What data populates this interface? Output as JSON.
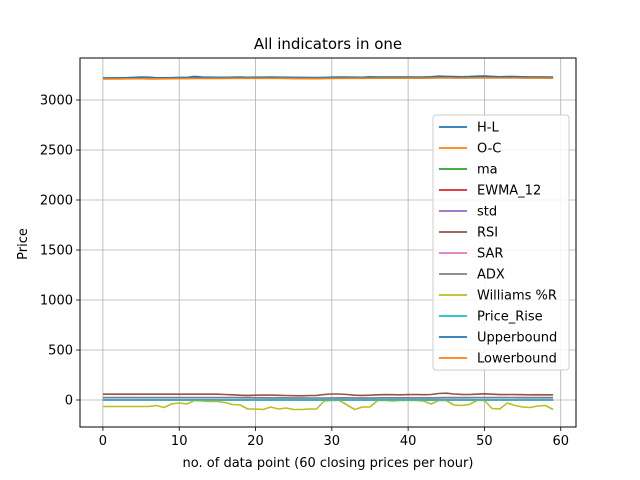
{
  "chart_data": {
    "type": "line",
    "title": "All indicators in one",
    "xlabel": "no. of data point (60 closing prices per hour)",
    "ylabel": "Price",
    "xlim": [
      -3,
      62
    ],
    "ylim": [
      -270,
      3420
    ],
    "xticks": [
      0,
      10,
      20,
      30,
      40,
      50,
      60
    ],
    "yticks": [
      0,
      500,
      1000,
      1500,
      2000,
      2500,
      3000
    ],
    "grid": true,
    "legend_position": "center-right",
    "x": [
      0,
      1,
      2,
      3,
      4,
      5,
      6,
      7,
      8,
      9,
      10,
      11,
      12,
      13,
      14,
      15,
      16,
      17,
      18,
      19,
      20,
      21,
      22,
      23,
      24,
      25,
      26,
      27,
      28,
      29,
      30,
      31,
      32,
      33,
      34,
      35,
      36,
      37,
      38,
      39,
      40,
      41,
      42,
      43,
      44,
      45,
      46,
      47,
      48,
      49,
      50,
      51,
      52,
      53,
      54,
      55,
      56,
      57,
      58,
      59
    ],
    "series": [
      {
        "name": "H-L",
        "color": "#1f77b4",
        "values": [
          3218,
          3219,
          3220,
          3222,
          3226,
          3230,
          3228,
          3222,
          3220,
          3222,
          3225,
          3224,
          3236,
          3230,
          3228,
          3227,
          3226,
          3228,
          3229,
          3227,
          3228,
          3228,
          3229,
          3228,
          3227,
          3226,
          3224,
          3223,
          3222,
          3224,
          3228,
          3230,
          3229,
          3228,
          3227,
          3232,
          3230,
          3229,
          3230,
          3230,
          3229,
          3228,
          3229,
          3232,
          3238,
          3236,
          3234,
          3232,
          3234,
          3238,
          3240,
          3236,
          3232,
          3234,
          3234,
          3232,
          3230,
          3230,
          3229,
          3228
        ]
      },
      {
        "name": "O-C",
        "color": "#ff7f0e",
        "values": [
          3212,
          3213,
          3214,
          3215,
          3216,
          3214,
          3210,
          3212,
          3214,
          3216,
          3218,
          3217,
          3220,
          3222,
          3220,
          3218,
          3219,
          3221,
          3220,
          3219,
          3220,
          3221,
          3220,
          3219,
          3218,
          3216,
          3214,
          3213,
          3214,
          3216,
          3220,
          3222,
          3220,
          3218,
          3219,
          3222,
          3221,
          3220,
          3221,
          3222,
          3221,
          3220,
          3220,
          3222,
          3226,
          3225,
          3222,
          3220,
          3222,
          3226,
          3228,
          3226,
          3224,
          3225,
          3224,
          3222,
          3221,
          3220,
          3219,
          3218
        ]
      },
      {
        "name": "ma",
        "color": "#2ca02c",
        "values": [
          0,
          0,
          0,
          0,
          0,
          0,
          0,
          0,
          0,
          0,
          0,
          0,
          0,
          0,
          0,
          0,
          0,
          0,
          0,
          0,
          0,
          0,
          0,
          0,
          0,
          0,
          0,
          0,
          0,
          0,
          0,
          0,
          0,
          0,
          0,
          0,
          0,
          0,
          0,
          0,
          0,
          0,
          0,
          0,
          0,
          0,
          0,
          0,
          0,
          0,
          0,
          0,
          0,
          0,
          0,
          0,
          0,
          0,
          0,
          0
        ]
      },
      {
        "name": "EWMA_12",
        "color": "#d62728",
        "values": [
          0,
          0,
          0,
          0,
          0,
          0,
          0,
          0,
          0,
          0,
          0,
          0,
          0,
          0,
          0,
          0,
          0,
          0,
          0,
          0,
          0,
          0,
          0,
          0,
          0,
          0,
          0,
          0,
          0,
          0,
          0,
          0,
          0,
          0,
          0,
          0,
          0,
          0,
          0,
          0,
          0,
          0,
          0,
          0,
          0,
          0,
          0,
          0,
          0,
          0,
          0,
          0,
          0,
          0,
          0,
          0,
          0,
          0,
          0,
          0
        ]
      },
      {
        "name": "std",
        "color": "#9467bd",
        "values": [
          5,
          5,
          5,
          5,
          5,
          5,
          5,
          5,
          5,
          5,
          5,
          5,
          5,
          5,
          5,
          5,
          5,
          5,
          5,
          5,
          5,
          5,
          5,
          5,
          5,
          5,
          5,
          5,
          5,
          5,
          5,
          5,
          5,
          5,
          5,
          5,
          5,
          5,
          5,
          5,
          5,
          5,
          5,
          5,
          5,
          5,
          5,
          5,
          5,
          5,
          5,
          5,
          5,
          5,
          5,
          5,
          5,
          5,
          5,
          5
        ]
      },
      {
        "name": "RSI",
        "color": "#8c564b",
        "values": [
          58,
          58,
          58,
          58,
          58,
          58,
          58,
          58,
          58,
          58,
          58,
          58,
          58,
          58,
          58,
          58,
          55,
          52,
          48,
          46,
          48,
          50,
          49,
          47,
          45,
          43,
          42,
          44,
          46,
          55,
          60,
          60,
          55,
          48,
          46,
          48,
          52,
          54,
          53,
          52,
          54,
          55,
          53,
          55,
          65,
          68,
          60,
          56,
          55,
          58,
          62,
          58,
          54,
          55,
          54,
          53,
          52,
          53,
          52,
          52
        ]
      },
      {
        "name": "SAR",
        "color": "#e377c2",
        "values": [
          0,
          0,
          0,
          0,
          0,
          0,
          0,
          0,
          0,
          0,
          0,
          0,
          0,
          0,
          0,
          0,
          0,
          0,
          0,
          0,
          0,
          0,
          0,
          0,
          0,
          0,
          0,
          0,
          0,
          0,
          0,
          0,
          0,
          0,
          0,
          0,
          0,
          0,
          0,
          0,
          0,
          0,
          0,
          0,
          0,
          0,
          0,
          0,
          0,
          0,
          0,
          0,
          0,
          0,
          0,
          0,
          0,
          0,
          0,
          0
        ]
      },
      {
        "name": "ADX",
        "color": "#7f7f7f",
        "values": [
          25,
          25,
          25,
          25,
          25,
          25,
          25,
          25,
          25,
          25,
          25,
          25,
          25,
          25,
          25,
          25,
          25,
          25,
          24,
          24,
          23,
          23,
          22,
          22,
          22,
          21,
          21,
          20,
          20,
          20,
          21,
          22,
          22,
          21,
          21,
          21,
          21,
          22,
          22,
          22,
          22,
          22,
          22,
          22,
          23,
          24,
          24,
          24,
          24,
          25,
          25,
          25,
          25,
          25,
          25,
          24,
          24,
          24,
          24,
          24
        ]
      },
      {
        "name": "Williams %R",
        "color": "#bcbd22",
        "values": [
          -65,
          -65,
          -65,
          -65,
          -65,
          -65,
          -65,
          -55,
          -75,
          -40,
          -30,
          -40,
          -5,
          -10,
          -15,
          -15,
          -25,
          -45,
          -50,
          -90,
          -90,
          -95,
          -70,
          -90,
          -80,
          -95,
          -95,
          -90,
          -90,
          -10,
          -5,
          -5,
          -50,
          -95,
          -70,
          -70,
          -5,
          -5,
          -10,
          -5,
          -5,
          -5,
          -10,
          -40,
          -5,
          -5,
          -50,
          -55,
          -45,
          -5,
          -5,
          -85,
          -90,
          -30,
          -55,
          -70,
          -75,
          -60,
          -55,
          -95
        ]
      },
      {
        "name": "Price_Rise",
        "color": "#17becf",
        "values": [
          0,
          0,
          0,
          0,
          0,
          0,
          1,
          0,
          0,
          0,
          1,
          0,
          0,
          1,
          0,
          0,
          1,
          0,
          0,
          0,
          1,
          0,
          0,
          0,
          1,
          0,
          0,
          0,
          1,
          0,
          0,
          1,
          0,
          0,
          0,
          1,
          0,
          0,
          1,
          0,
          0,
          0,
          1,
          0,
          0,
          1,
          0,
          0,
          0,
          1,
          0,
          0,
          1,
          0,
          0,
          0,
          1,
          0,
          0,
          0
        ]
      },
      {
        "name": "Upperbound",
        "color": "#1f77b4",
        "values": [
          3220,
          3220,
          3221,
          3222,
          3223,
          3223,
          3223,
          3222,
          3222,
          3223,
          3224,
          3224,
          3226,
          3226,
          3226,
          3226,
          3226,
          3227,
          3227,
          3227,
          3227,
          3227,
          3227,
          3227,
          3226,
          3226,
          3225,
          3224,
          3224,
          3225,
          3226,
          3227,
          3227,
          3227,
          3227,
          3228,
          3228,
          3228,
          3228,
          3228,
          3228,
          3228,
          3228,
          3229,
          3231,
          3231,
          3230,
          3230,
          3230,
          3231,
          3232,
          3231,
          3230,
          3230,
          3230,
          3229,
          3229,
          3229,
          3228,
          3228
        ]
      },
      {
        "name": "Lowerbound",
        "color": "#ff7f0e",
        "values": [
          3210,
          3210,
          3211,
          3212,
          3213,
          3213,
          3213,
          3212,
          3212,
          3213,
          3214,
          3214,
          3216,
          3216,
          3216,
          3216,
          3216,
          3217,
          3217,
          3217,
          3217,
          3217,
          3217,
          3217,
          3216,
          3216,
          3215,
          3214,
          3214,
          3215,
          3216,
          3217,
          3217,
          3217,
          3217,
          3218,
          3218,
          3218,
          3218,
          3218,
          3218,
          3218,
          3218,
          3219,
          3221,
          3221,
          3220,
          3220,
          3220,
          3221,
          3222,
          3221,
          3220,
          3220,
          3220,
          3219,
          3219,
          3219,
          3218,
          3218
        ]
      }
    ]
  }
}
